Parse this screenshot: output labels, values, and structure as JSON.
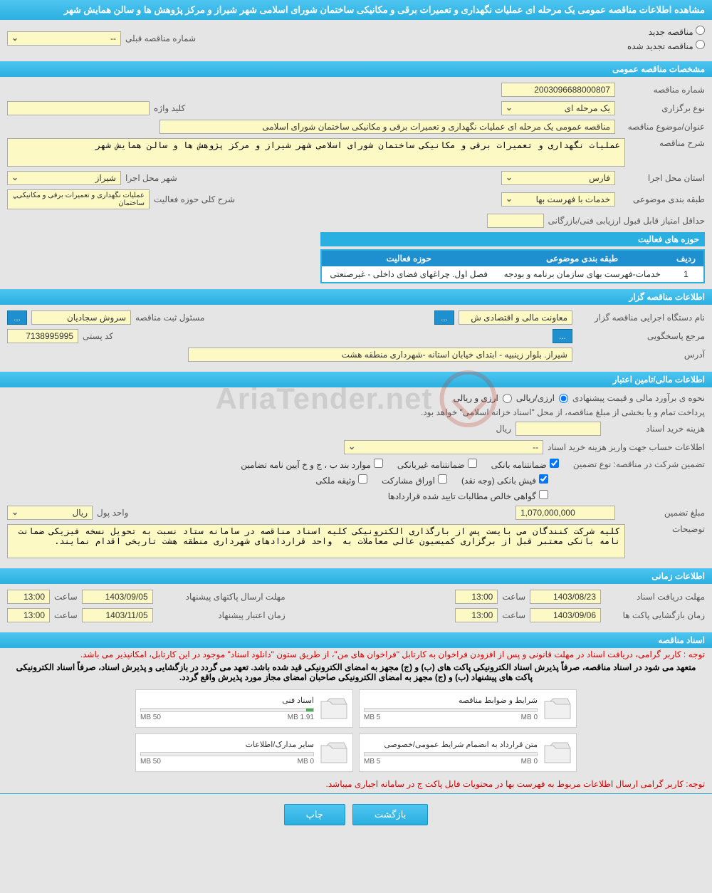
{
  "page_title": "مشاهده اطلاعات مناقصه عمومی یک مرحله ای عملیات نگهداری و تعمیرات برقی و مکانیکی ساختمان شورای اسلامی شهر شیراز و مرکز پژوهش ها و سالن همایش شهر",
  "tender_type": {
    "new_label": "مناقصه جدید",
    "renewed_label": "مناقصه تجدید شده",
    "prev_number_label": "شماره مناقصه قبلی",
    "prev_number_value": "--"
  },
  "sections": {
    "general": "مشخصات مناقصه عمومی",
    "organizer": "اطلاعات مناقصه گزار",
    "financial": "اطلاعات مالی/تامین اعتبار",
    "time": "اطلاعات زمانی",
    "docs": "اسناد مناقصه"
  },
  "general": {
    "tender_no_label": "شماره مناقصه",
    "tender_no": "2003096688000807",
    "type_label": "نوع برگزاری",
    "type_value": "یک مرحله ای",
    "keyword_label": "کلید واژه",
    "keyword_value": "",
    "title_label": "عنوان/موضوع مناقصه",
    "title_value": "مناقصه عمومی یک مرحله ای عملیات نگهداری و تعمیرات برقی و مکانیکی ساختمان شورای اسلامی",
    "desc_label": "شرح مناقصه",
    "desc_value": "عملیات نگهداری و تعمیرات برقی و مکانیکی ساختمان شورای اسلامی شهر شیراز و مرکز پژوهش ها و سالن همایش شهر",
    "province_label": "استان محل اجرا",
    "province_value": "فارس",
    "city_label": "شهر محل اجرا",
    "city_value": "شیراز",
    "class_label": "طبقه بندی موضوعی",
    "class_value": "خدمات با فهرست بها",
    "scope_label": "شرح کلی حوزه فعالیت",
    "scope_value": "عملیات نگهداری و تعمیرات برقی و مکانیکی ساختمان",
    "min_score_label": "حداقل امتیاز قابل قبول ارزیابی فنی/بازرگانی",
    "min_score_value": "",
    "activity_table_title": "حوزه های فعالیت",
    "activity_table": {
      "headers": {
        "row": "ردیف",
        "class": "طبقه بندی موضوعی",
        "scope": "حوزه فعالیت"
      },
      "rows": [
        {
          "n": "1",
          "class": "خدمات-فهرست بهای سازمان برنامه و بودجه",
          "scope": "فصل اول. چراغهای فضای داخلی - غیرصنعتی"
        }
      ]
    }
  },
  "organizer": {
    "org_label": "نام دستگاه اجرایی مناقصه گزار",
    "org_value": "معاونت مالی و اقتصادی ش",
    "registrar_label": "مسئول ثبت مناقصه",
    "registrar_value": "سروش سجادیان",
    "contact_label": "مرجع پاسخگویی",
    "postal_label": "کد پستی",
    "postal_value": "7138995995",
    "address_label": "آدرس",
    "address_value": "شیراز. بلوار زینبیه - ابتدای خیابان استانه -شهرداری منطقه هشت"
  },
  "financial": {
    "estimate_label": "نحوه ی برآورد مالی و قیمت پیشنهادی",
    "currency_rial": "ارزی/ریالی",
    "currency_both": "ارزی و ریالی",
    "payment_note": "پرداخت تمام و یا بخشی از مبلغ مناقصه، از محل \"اسناد خزانه اسلامی\" خواهد بود.",
    "doc_cost_label": "هزینه خرید اسناد",
    "doc_cost_value": "",
    "rial": "ریال",
    "account_label": "اطلاعات حساب جهت واریز هزینه خرید اسناد",
    "account_value": "--",
    "guarantee_label": "تضمین شرکت در مناقصه:   نوع تضمین",
    "chk": {
      "bank_guarantee": "ضمانتنامه بانکی",
      "nonbank_guarantee": "ضمانتنامه غیربانکی",
      "items_b": "موارد بند ب ، ج و خ آیین نامه تضامین",
      "cash": "فیش بانکی (وجه نقد)",
      "bonds": "اوراق مشارکت",
      "property": "وثیقه ملکی",
      "net_receivables": "گواهی خالص مطالبات تایید شده قراردادها"
    },
    "guarantee_amount_label": "مبلغ تضمین",
    "guarantee_amount": "1,070,000,000",
    "currency_unit_label": "واحد پول",
    "currency_unit": "ریال",
    "explain_label": "توضیحات",
    "explain_value": "کلیه شرکت کنندگان می بایست پس از بارگذاری الکترونیکی کلیه اسناد مناقصه در سامانه ستاد نسبت به تحویل نسخه فیزیکی ضمانت نامه بانکی معتبر قبل از برگزاری کمیسیون عالی معاملات به  واحد قراردادهای شهرداری منطقه هشت تاریخی اقدام نمایند."
  },
  "time": {
    "doc_deadline_label": "مهلت دریافت اسناد",
    "doc_deadline_date": "1403/08/23",
    "doc_deadline_time": "13:00",
    "bid_deadline_label": "مهلت ارسال پاکتهای پیشنهاد",
    "bid_deadline_date": "1403/09/05",
    "bid_deadline_time": "13:00",
    "opening_label": "زمان بازگشایی پاکت ها",
    "opening_date": "1403/09/06",
    "opening_time": "13:00",
    "validity_label": "زمان اعتبار پیشنهاد",
    "validity_date": "1403/11/05",
    "validity_time": "13:00",
    "time_word": "ساعت"
  },
  "docs": {
    "notice1": "توجه : کاربر گرامی، دریافت اسناد در مهلت قانونی و پس از افزودن فراخوان به کارتابل \"فراخوان های من\"، از طریق ستون \"دانلود اسناد\" موجود در این کارتابل، امکانپذیر می باشد.",
    "notice2": "متعهد می شود در اسناد مناقصه، صرفاً پذیرش اسناد الکترونیکی پاکت های (ب) و (ج) مجهز به امضای الکترونیکی قید شده باشد. تعهد می گردد در بازگشایی و پذیرش اسناد، صرفاً اسناد الکترونیکی پاکت های پیشنهاد (ب) و (ج) مجهز به امضای الکترونیکی صاحبان امضای مجاز مورد پذیرش واقع گردد.",
    "notice3": "توجه: کاربر گرامی ارسال اطلاعات مربوط به فهرست بها در محتویات فایل پاکت ج در سامانه اجباری میباشد.",
    "cards": [
      {
        "title": "شرایط و ضوابط مناقصه",
        "used": "0 MB",
        "max": "5 MB",
        "fill": 0
      },
      {
        "title": "اسناد فنی",
        "used": "1.91 MB",
        "max": "50 MB",
        "fill": 4
      },
      {
        "title": "متن قرارداد به انضمام شرایط عمومی/خصوصی",
        "used": "0 MB",
        "max": "5 MB",
        "fill": 0
      },
      {
        "title": "سایر مدارک/اطلاعات",
        "used": "0 MB",
        "max": "50 MB",
        "fill": 0
      }
    ]
  },
  "buttons": {
    "back": "بازگشت",
    "print": "چاپ"
  },
  "colors": {
    "header_bg": "#2ab0e0",
    "field_bg": "#fdf9c4",
    "page_bg": "#e5e5e5"
  }
}
